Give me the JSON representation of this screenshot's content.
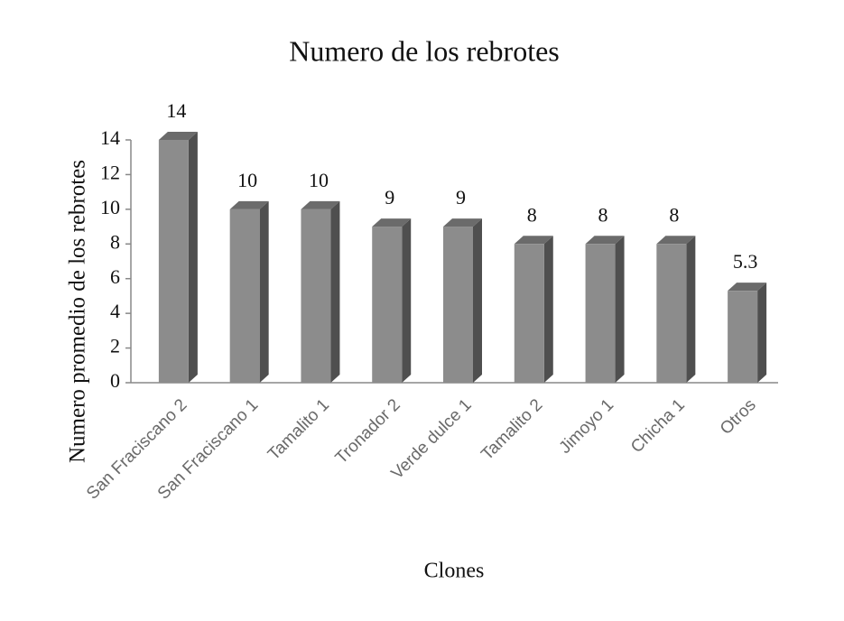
{
  "chart_data": {
    "type": "bar3d",
    "title": "Numero de los rebrotes",
    "x_label": "Clones",
    "y_label": "Numero promedio de los rebrotes",
    "categories": [
      "San Fraciscano 2",
      "San Fraciscano 1",
      "Tamalito 1",
      "Tronador 2",
      "Verde dulce 1",
      "Tamalito 2",
      "Jimoyo 1",
      "Chicha 1",
      "Otros"
    ],
    "values": [
      14,
      10,
      10,
      9,
      9,
      8,
      8,
      8,
      5.3
    ],
    "color": "#8c8c8c",
    "ylim": [
      0,
      14
    ],
    "yticks": [
      0,
      2,
      4,
      6,
      8,
      10,
      12,
      14
    ],
    "grid": false
  }
}
